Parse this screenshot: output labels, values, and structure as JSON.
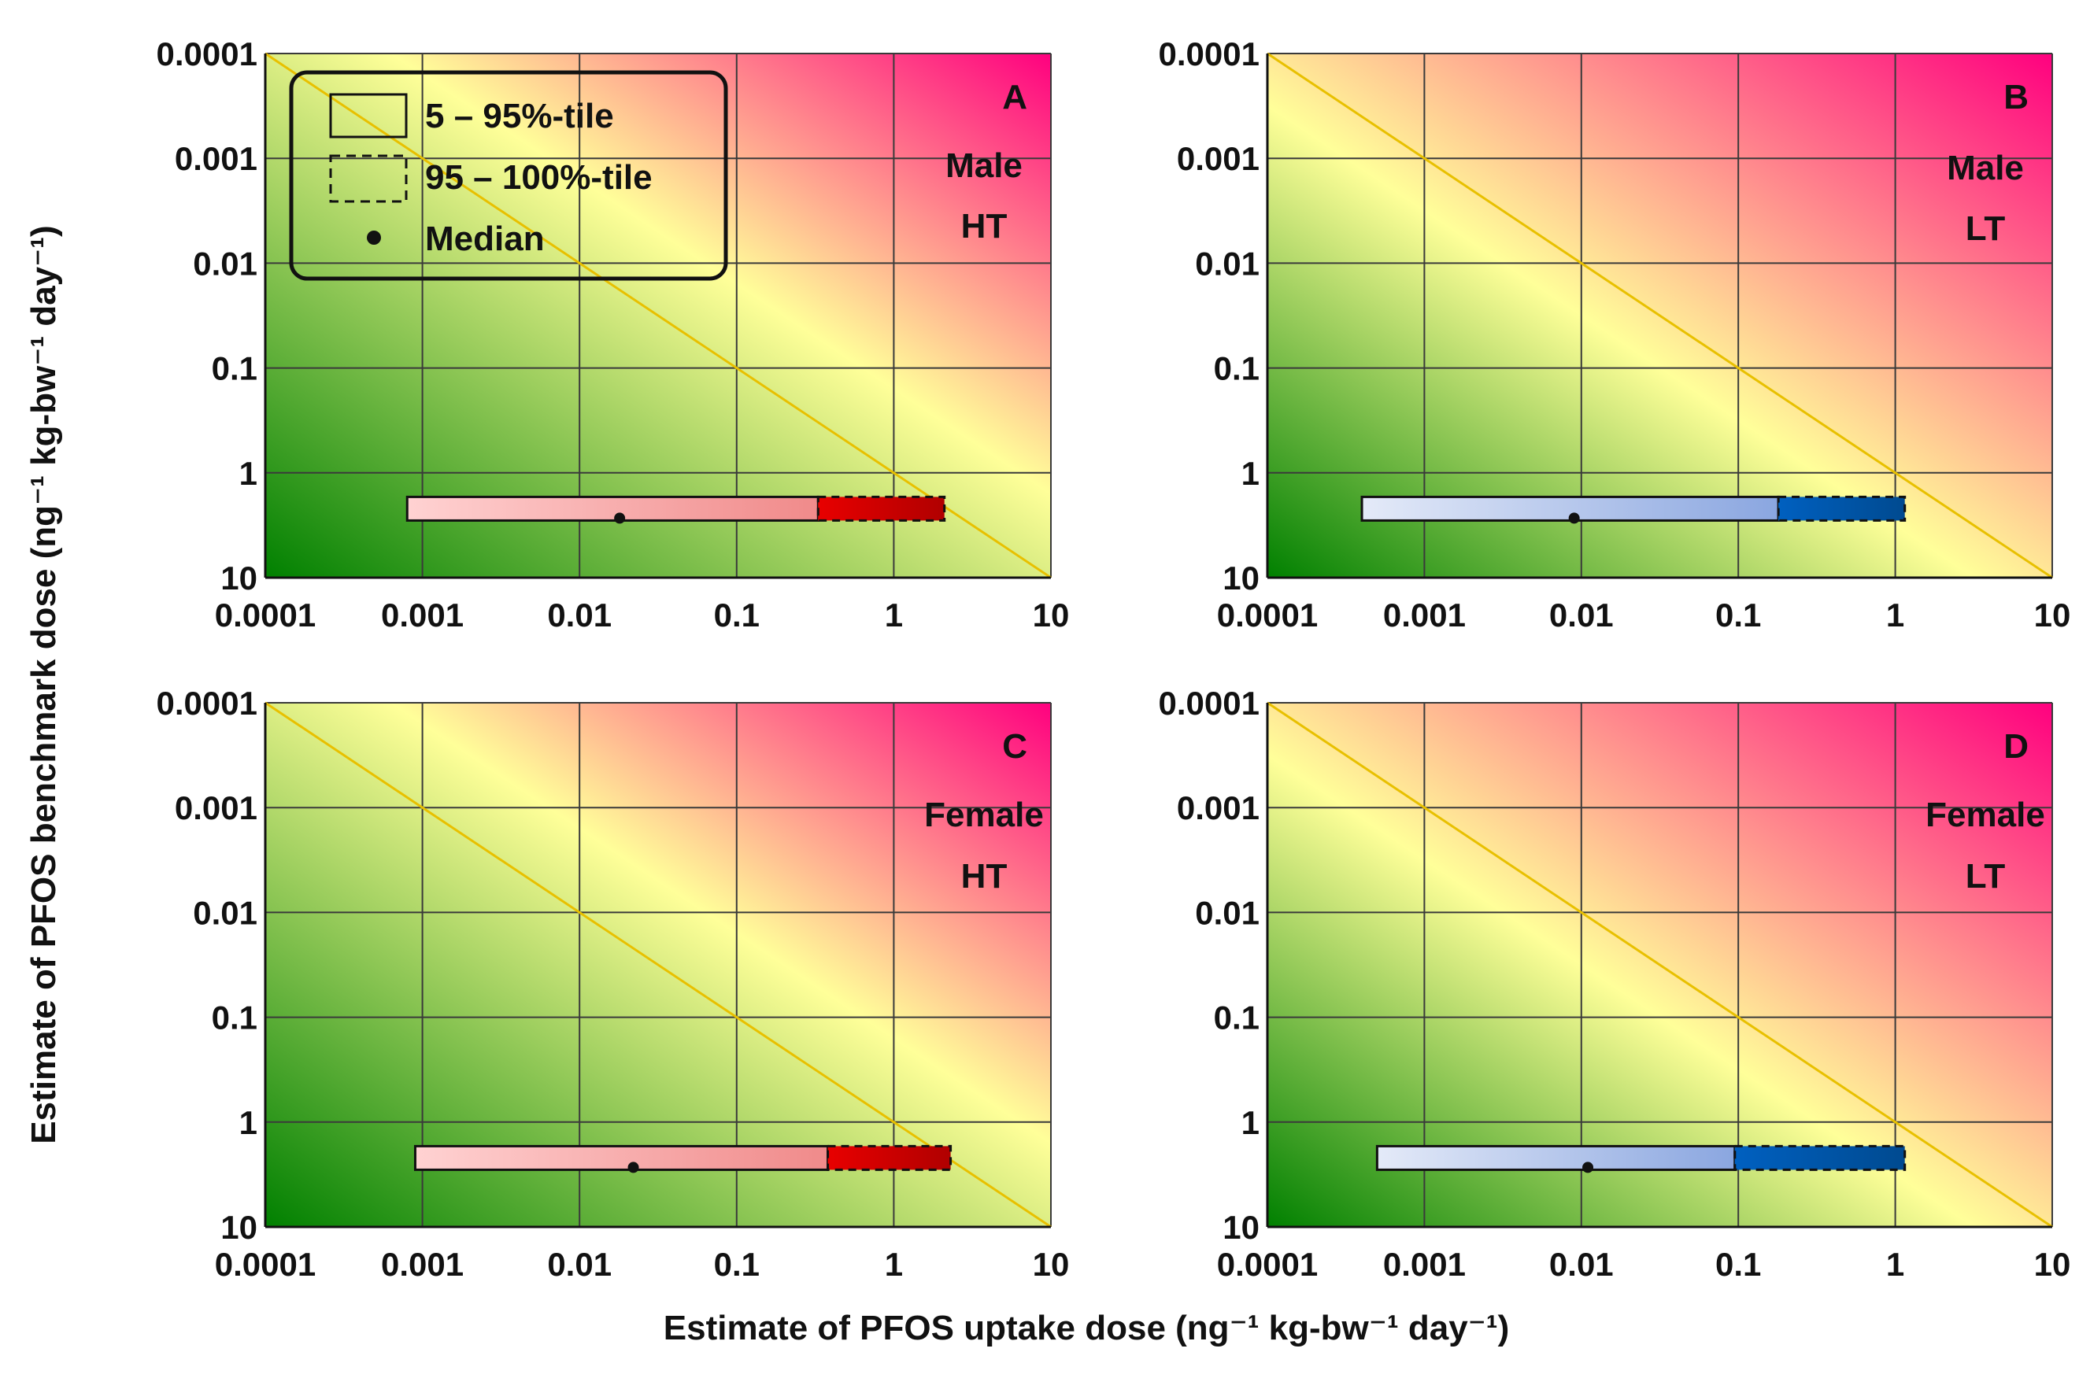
{
  "figure": {
    "ylabel": "Estimate of PFOS benchmark dose (ng⁻¹ kg-bw⁻¹ day⁻¹)",
    "xlabel": "Estimate of PFOS uptake dose (ng⁻¹ kg-bw⁻¹ day⁻¹)"
  },
  "legend": {
    "items": [
      "5 – 95%-tile",
      "95 – 100%-tile",
      "Median"
    ]
  },
  "colors": {
    "safe": "#008000",
    "threshold": "#ffff99",
    "danger": "#ff007f",
    "threshold_line": "#e8c000",
    "male_light": "#ffd2d2",
    "male_mid": "#f08a8a",
    "male_dark": "#e80000",
    "lt_light": "#e4eaf8",
    "lt_mid": "#8aa6e0",
    "lt_dark": "#0060c0"
  },
  "chart_data": [
    {
      "type": "bar",
      "panel": "A",
      "sex": "Male",
      "group": "HT",
      "x_ticks": [
        "0.0001",
        "0.001",
        "0.01",
        "0.1",
        "1",
        "10"
      ],
      "y_ticks": [
        "0.0001",
        "0.001",
        "0.01",
        "0.1",
        "1",
        "10"
      ],
      "xlim": [
        0.0001,
        10
      ],
      "ylim": [
        0.0001,
        10
      ],
      "x_scale": "log",
      "y_scale": "log-inverted",
      "threshold_line": "uptake = benchmark",
      "benchmark_dose": 2.2,
      "uptake_p5": 0.0008,
      "uptake_p95": 0.33,
      "uptake_max": 2.1,
      "uptake_median": 0.018,
      "palette": "male"
    },
    {
      "type": "bar",
      "panel": "B",
      "sex": "Male",
      "group": "LT",
      "x_ticks": [
        "0.0001",
        "0.001",
        "0.01",
        "0.1",
        "1",
        "10"
      ],
      "y_ticks": [
        "0.0001",
        "0.001",
        "0.01",
        "0.1",
        "1",
        "10"
      ],
      "xlim": [
        0.0001,
        10
      ],
      "ylim": [
        0.0001,
        10
      ],
      "x_scale": "log",
      "y_scale": "log-inverted",
      "threshold_line": "uptake = benchmark",
      "benchmark_dose": 2.2,
      "uptake_p5": 0.0004,
      "uptake_p95": 0.18,
      "uptake_max": 1.15,
      "uptake_median": 0.009,
      "palette": "lt"
    },
    {
      "type": "bar",
      "panel": "C",
      "sex": "Female",
      "group": "HT",
      "x_ticks": [
        "0.0001",
        "0.001",
        "0.01",
        "0.1",
        "1",
        "10"
      ],
      "y_ticks": [
        "0.0001",
        "0.001",
        "0.01",
        "0.1",
        "1",
        "10"
      ],
      "xlim": [
        0.0001,
        10
      ],
      "ylim": [
        0.0001,
        10
      ],
      "x_scale": "log",
      "y_scale": "log-inverted",
      "threshold_line": "uptake = benchmark",
      "benchmark_dose": 2.2,
      "uptake_p5": 0.0009,
      "uptake_p95": 0.38,
      "uptake_max": 2.3,
      "uptake_median": 0.022,
      "palette": "male"
    },
    {
      "type": "bar",
      "panel": "D",
      "sex": "Female",
      "group": "LT",
      "x_ticks": [
        "0.0001",
        "0.001",
        "0.01",
        "0.1",
        "1",
        "10"
      ],
      "y_ticks": [
        "0.0001",
        "0.001",
        "0.01",
        "0.1",
        "1",
        "10"
      ],
      "xlim": [
        0.0001,
        10
      ],
      "ylim": [
        0.0001,
        10
      ],
      "x_scale": "log",
      "y_scale": "log-inverted",
      "threshold_line": "uptake = benchmark",
      "benchmark_dose": 2.2,
      "uptake_p5": 0.0005,
      "uptake_p95": 0.095,
      "uptake_max": 1.15,
      "uptake_median": 0.011,
      "palette": "lt"
    }
  ]
}
